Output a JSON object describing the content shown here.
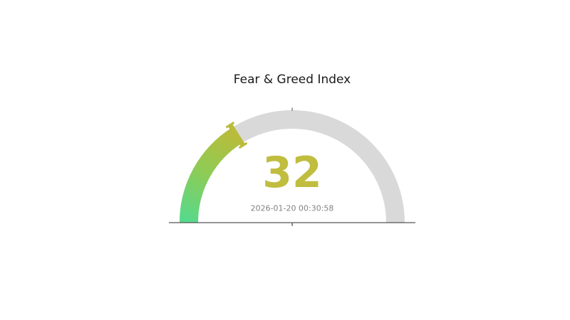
{
  "page": {
    "background": "#ffffff"
  },
  "chart_data": {
    "type": "gauge",
    "title": "Fear & Greed Index",
    "value": 32,
    "value_label": "32",
    "min": 0,
    "max": 100,
    "start_angle": 180,
    "end_angle": 0,
    "timestamp": "2026-01-20 00:30:58",
    "colors": {
      "track": "#d9d9d9",
      "progress_gradient": [
        "#57d98c",
        "#8ccc57",
        "#b9bc3a"
      ],
      "needle": "#b9bc3a",
      "value_text": "#c0bd3f",
      "title_text": "#1a1a1a",
      "timestamp_text": "#828282",
      "baseline": "#555555",
      "center_tick": "#555555",
      "top_tick": "#8a8a8a"
    }
  }
}
